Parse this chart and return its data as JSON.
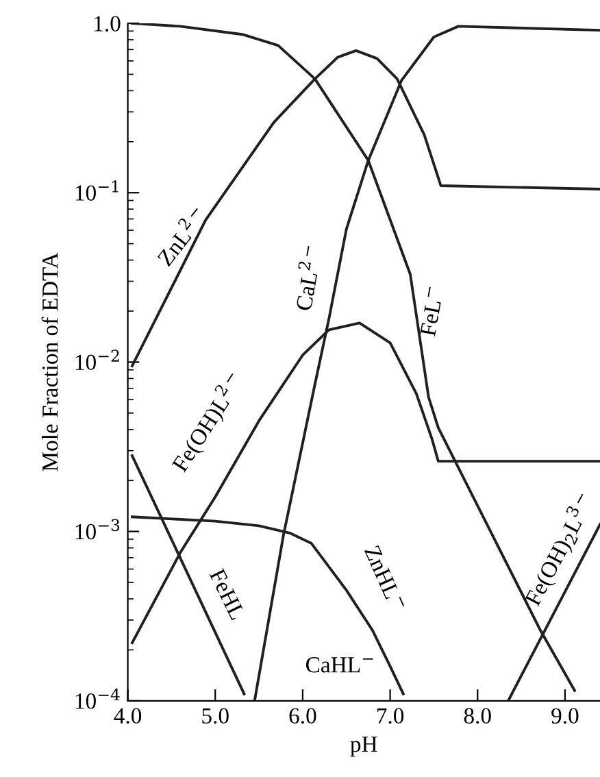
{
  "chart_data": {
    "type": "line",
    "xlabel": "pH",
    "ylabel": "Mole Fraction of EDTA",
    "log": "y",
    "xlim": [
      4.0,
      9.4
    ],
    "ylim": [
      0.0001,
      1.0
    ],
    "xticks": [
      {
        "value": 4,
        "label": "4.0"
      },
      {
        "value": 5,
        "label": "5.0"
      },
      {
        "value": 6,
        "label": "6.0"
      },
      {
        "value": 7,
        "label": "7.0"
      },
      {
        "value": 8,
        "label": "8.0"
      },
      {
        "value": 9,
        "label": "9.0"
      }
    ],
    "yticks": [
      {
        "value": 0.0001,
        "label": "10$^{−4}$"
      },
      {
        "value": 0.001,
        "label": "10$^{−3}$"
      },
      {
        "value": 0.01,
        "label": "10$^{−2}$"
      },
      {
        "value": 0.1,
        "label": "10$^{−1}$"
      },
      {
        "value": 1,
        "label": "1.0"
      }
    ],
    "grid": false,
    "legend": false,
    "marker": "none",
    "line_style": "solid",
    "series": [
      {
        "name": "FeL$^{−}$",
        "color": "#231f20",
        "x": [
          4.05,
          4.6,
          5.31,
          5.72,
          6.14,
          6.75,
          7.23,
          7.44,
          7.55,
          8.72,
          9.11
        ],
        "values": [
          1.0,
          0.96,
          0.86,
          0.74,
          0.47,
          0.155,
          0.033,
          0.0062,
          0.0041,
          0.00026,
          0.000115
        ]
      },
      {
        "name": "ZnL$^{2−}$",
        "color": "#231f20",
        "x": [
          4.05,
          4.89,
          5.67,
          6.14,
          6.4,
          6.61,
          6.85,
          7.08,
          7.39,
          7.58,
          9.4
        ],
        "values": [
          0.0095,
          0.069,
          0.26,
          0.47,
          0.63,
          0.69,
          0.62,
          0.47,
          0.22,
          0.11,
          0.105
        ]
      },
      {
        "name": "CaL$^{2−}$",
        "color": "#231f20",
        "x": [
          5.45,
          5.78,
          6.14,
          6.3,
          6.5,
          6.75,
          7.13,
          7.5,
          7.78,
          9.4
        ],
        "values": [
          0.0001,
          0.00095,
          0.0074,
          0.018,
          0.061,
          0.155,
          0.46,
          0.83,
          0.96,
          0.91
        ]
      },
      {
        "name": "Fe(OH)L$^{2−}$",
        "color": "#231f20",
        "x": [
          4.05,
          4.6,
          5.0,
          5.5,
          6.0,
          6.3,
          6.65,
          7.0,
          7.3,
          7.48,
          7.55,
          9.4
        ],
        "values": [
          0.00022,
          0.00075,
          0.0016,
          0.0045,
          0.011,
          0.0155,
          0.017,
          0.013,
          0.0065,
          0.0035,
          0.0026,
          0.0026
        ]
      },
      {
        "name": "FeHL",
        "color": "#231f20",
        "x": [
          4.05,
          5.33
        ],
        "values": [
          0.0028,
          0.00011
        ]
      },
      {
        "name": "ZnHL$^{−}$",
        "color": "#231f20",
        "x": [
          4.05,
          5.0,
          5.5,
          5.85,
          6.1,
          6.5,
          6.8,
          7.0,
          7.15
        ],
        "values": [
          0.00122,
          0.00115,
          0.00108,
          0.00098,
          0.00085,
          0.00045,
          0.00026,
          0.00016,
          0.00011
        ]
      },
      {
        "name": "Fe(OH)$_{2}$L$^{3−}$",
        "color": "#231f20",
        "x": [
          8.35,
          9.4
        ],
        "values": [
          0.0001,
          0.0011
        ]
      }
    ],
    "annotations": [
      "CaHL$^{−}$"
    ]
  }
}
